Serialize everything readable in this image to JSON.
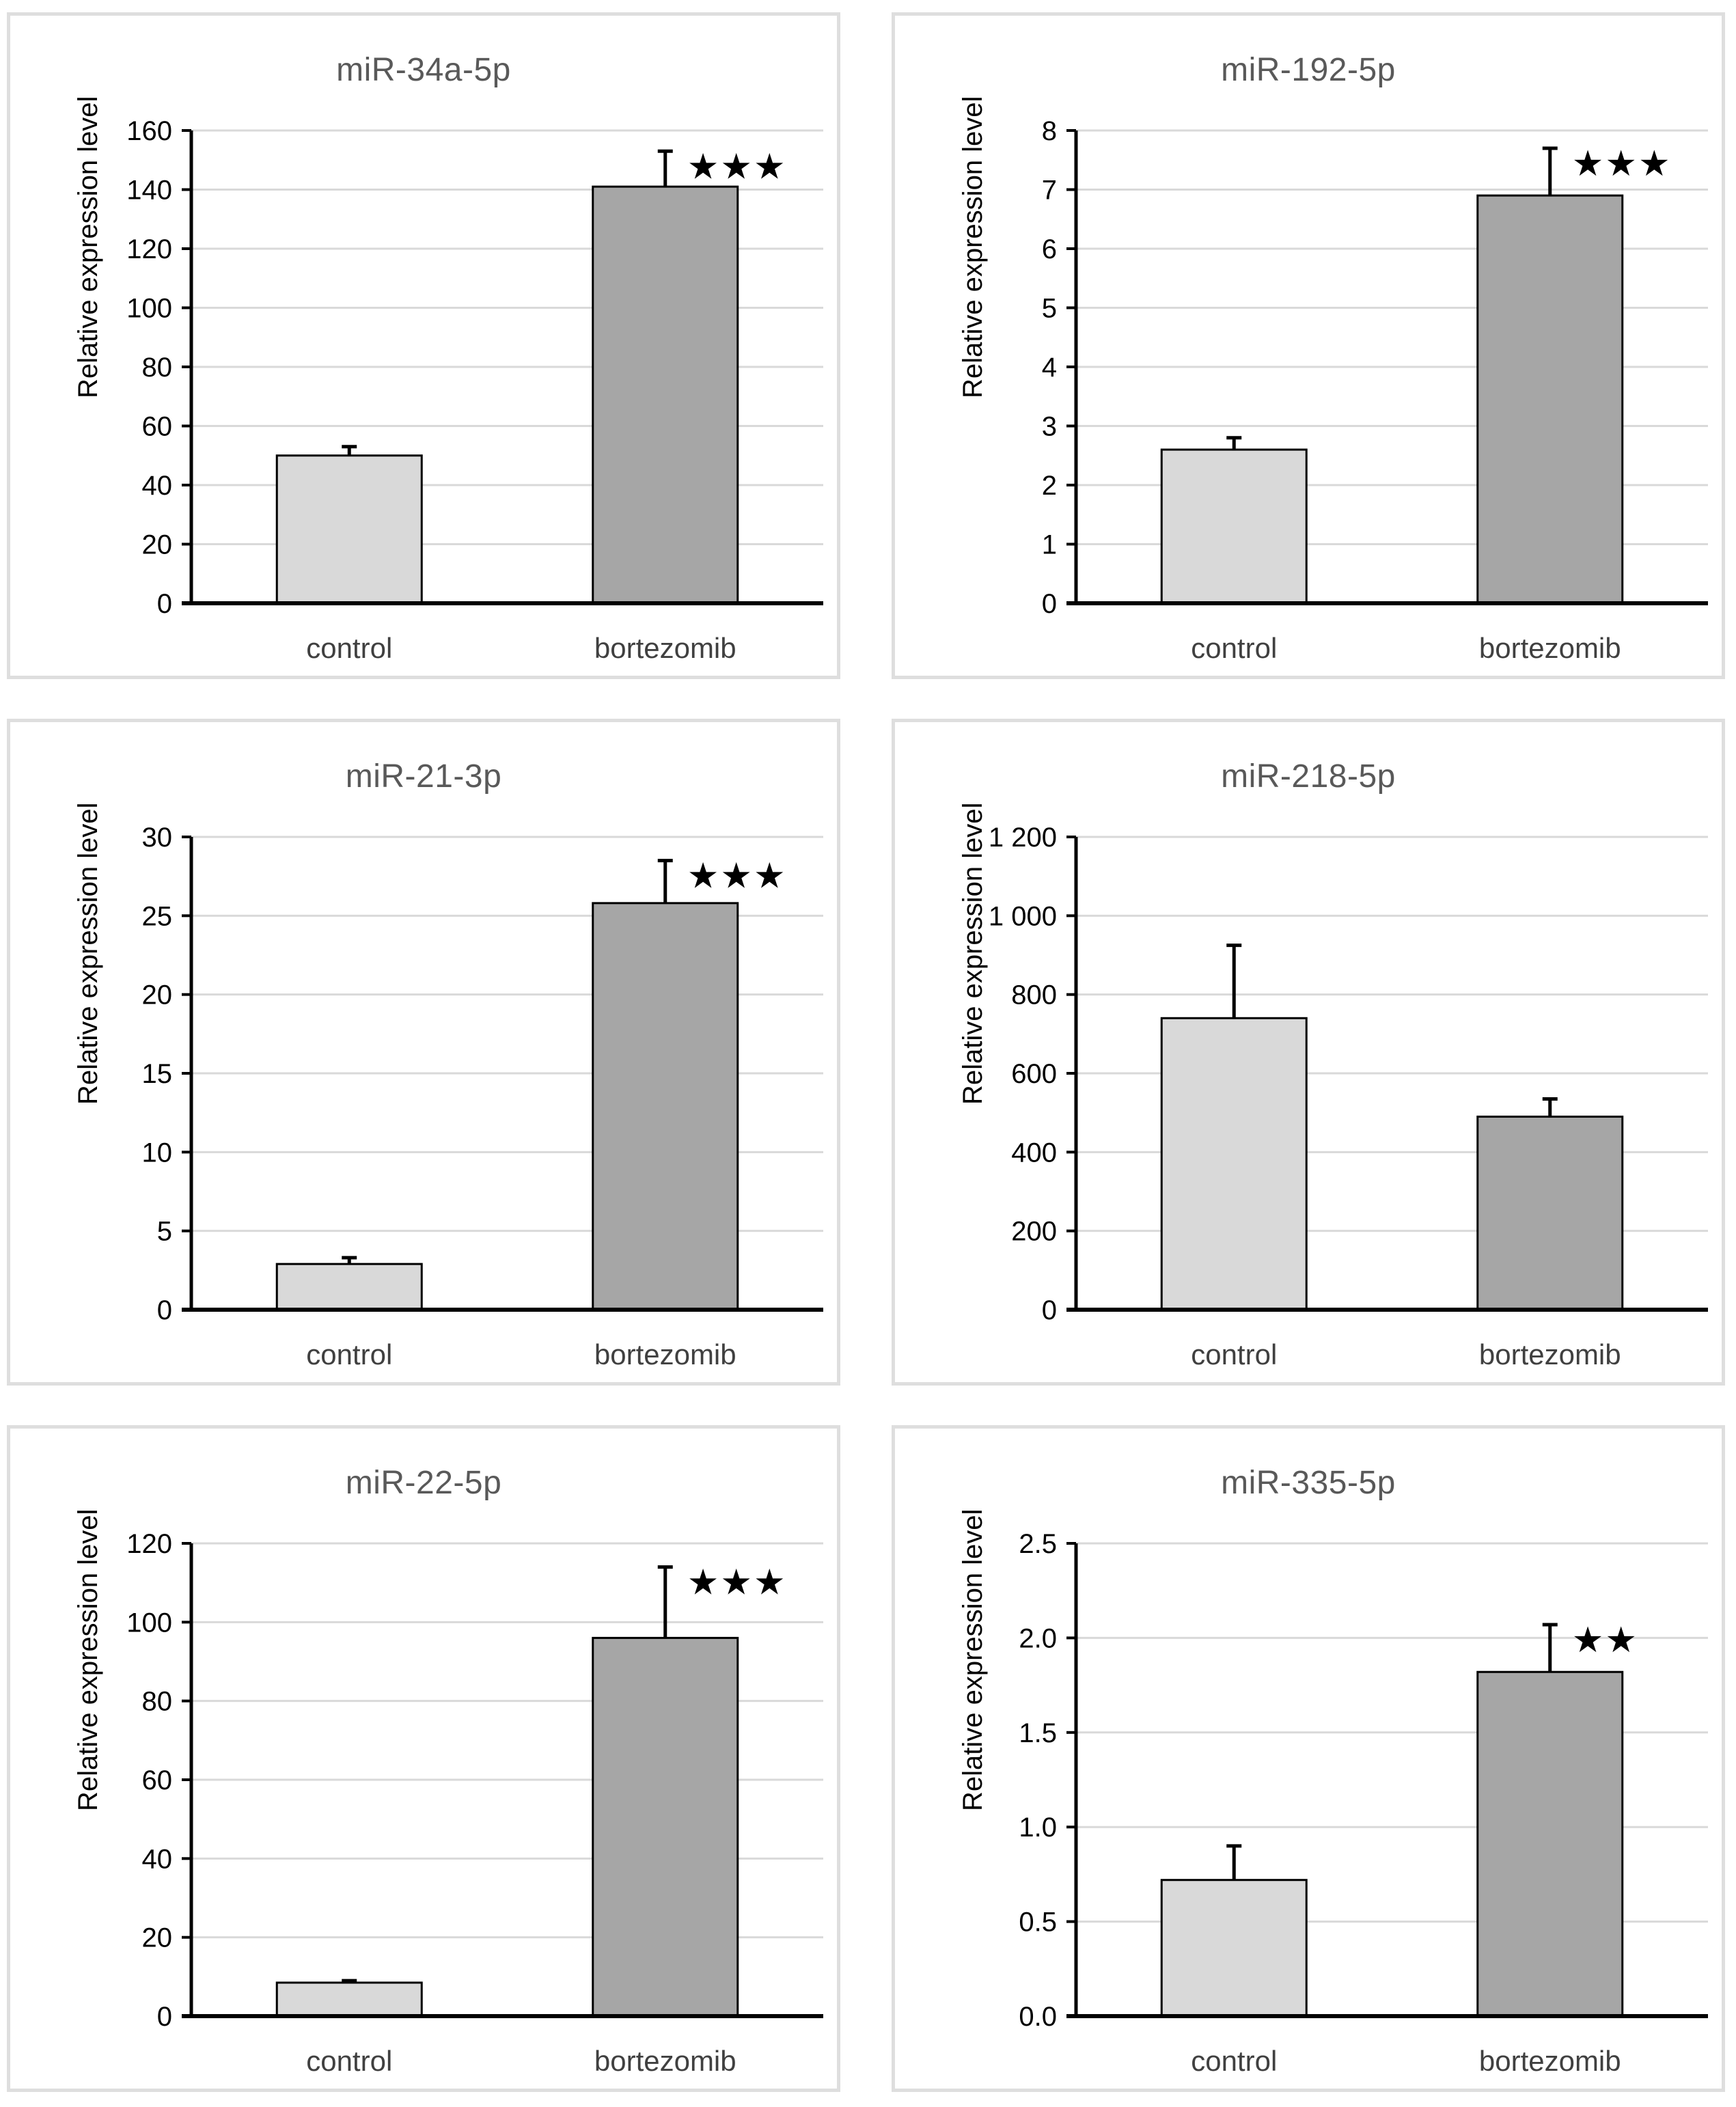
{
  "chart_data": [
    {
      "type": "bar",
      "title": "miR-34a-5p",
      "ylabel": "Relative expression level",
      "categories": [
        "control",
        "bortezomib"
      ],
      "values": [
        50,
        141
      ],
      "errors": [
        3,
        12
      ],
      "significance": [
        "",
        "★★★"
      ],
      "ylim": [
        0,
        160
      ],
      "yticks": [
        0,
        20,
        40,
        60,
        80,
        100,
        120,
        140,
        160
      ],
      "ytick_labels": [
        "0",
        "20",
        "40",
        "60",
        "80",
        "100",
        "120",
        "140",
        "160"
      ],
      "bar_colors": [
        "#d9d9d9",
        "#a6a6a6"
      ]
    },
    {
      "type": "bar",
      "title": "miR-192-5p",
      "ylabel": "Relative expression level",
      "categories": [
        "control",
        "bortezomib"
      ],
      "values": [
        2.6,
        6.9
      ],
      "errors": [
        0.2,
        0.8
      ],
      "significance": [
        "",
        "★★★"
      ],
      "ylim": [
        0,
        8
      ],
      "yticks": [
        0,
        1,
        2,
        3,
        4,
        5,
        6,
        7,
        8
      ],
      "ytick_labels": [
        "0",
        "1",
        "2",
        "3",
        "4",
        "5",
        "6",
        "7",
        "8"
      ],
      "bar_colors": [
        "#d9d9d9",
        "#a6a6a6"
      ]
    },
    {
      "type": "bar",
      "title": "miR-21-3p",
      "ylabel": "Relative expression level",
      "categories": [
        "control",
        "bortezomib"
      ],
      "values": [
        2.9,
        25.8
      ],
      "errors": [
        0.4,
        2.7
      ],
      "significance": [
        "",
        "★★★"
      ],
      "ylim": [
        0,
        30
      ],
      "yticks": [
        0,
        5,
        10,
        15,
        20,
        25,
        30
      ],
      "ytick_labels": [
        "0",
        "5",
        "10",
        "15",
        "20",
        "25",
        "30"
      ],
      "bar_colors": [
        "#d9d9d9",
        "#a6a6a6"
      ]
    },
    {
      "type": "bar",
      "title": "miR-218-5p",
      "ylabel": "Relative expression level",
      "categories": [
        "control",
        "bortezomib"
      ],
      "values": [
        740,
        490
      ],
      "errors": [
        185,
        45
      ],
      "significance": [
        "",
        ""
      ],
      "ylim": [
        0,
        1200
      ],
      "yticks": [
        0,
        200,
        400,
        600,
        800,
        1000,
        1200
      ],
      "ytick_labels": [
        "0",
        "200",
        "400",
        "600",
        "800",
        "1 000",
        "1 200"
      ],
      "bar_colors": [
        "#d9d9d9",
        "#a6a6a6"
      ]
    },
    {
      "type": "bar",
      "title": "miR-22-5p",
      "ylabel": "Relative expression level",
      "categories": [
        "control",
        "bortezomib"
      ],
      "values": [
        8.5,
        96
      ],
      "errors": [
        0.5,
        18
      ],
      "significance": [
        "",
        "★★★"
      ],
      "ylim": [
        0,
        120
      ],
      "yticks": [
        0,
        20,
        40,
        60,
        80,
        100,
        120
      ],
      "ytick_labels": [
        "0",
        "20",
        "40",
        "60",
        "80",
        "100",
        "120"
      ],
      "bar_colors": [
        "#d9d9d9",
        "#a6a6a6"
      ]
    },
    {
      "type": "bar",
      "title": "miR-335-5p",
      "ylabel": "Relative expression level",
      "categories": [
        "control",
        "bortezomib"
      ],
      "values": [
        0.72,
        1.82
      ],
      "errors": [
        0.18,
        0.25
      ],
      "significance": [
        "",
        "★★"
      ],
      "ylim": [
        0,
        2.5
      ],
      "yticks": [
        0,
        0.5,
        1.0,
        1.5,
        2.0,
        2.5
      ],
      "ytick_labels": [
        "0.0",
        "0.5",
        "1.0",
        "1.5",
        "2.0",
        "2.5"
      ],
      "bar_colors": [
        "#d9d9d9",
        "#a6a6a6"
      ]
    }
  ]
}
